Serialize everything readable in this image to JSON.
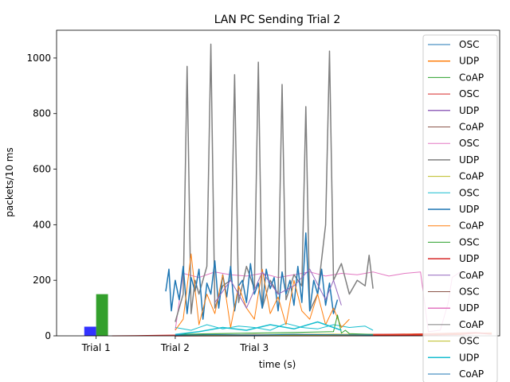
{
  "chart_data": {
    "type": "line",
    "title": "LAN PC Sending Trial 2",
    "xlabel": "time (s)",
    "ylabel": "packets/10 ms",
    "xlim": [
      -0.5,
      5.1
    ],
    "ylim": [
      0,
      1100
    ],
    "x_ticks": [
      {
        "value": 0,
        "label": "Trial 1"
      },
      {
        "value": 1,
        "label": "Trial 2"
      },
      {
        "value": 2,
        "label": "Trial 3"
      }
    ],
    "y_ticks": [
      0,
      200,
      400,
      600,
      800,
      1000
    ],
    "grid": false,
    "legend_position": "right",
    "bars": [
      {
        "x": -0.15,
        "width": 0.15,
        "value": 33,
        "color": "#3333ff"
      },
      {
        "x": 0.0,
        "width": 0.15,
        "value": 150,
        "color": "#33a02c"
      }
    ],
    "series": [
      {
        "name": "OSC",
        "color": "#1f77b4",
        "linewidth": 1.0,
        "x": [
          1.0,
          1.5,
          2.0,
          2.5,
          3.0,
          3.5
        ],
        "y": [
          2,
          3,
          2,
          4,
          3,
          2
        ]
      },
      {
        "name": "UDP",
        "color": "#ff7f0e",
        "linewidth": 1.5,
        "x": [
          1.0,
          1.5,
          2.0,
          2.5,
          3.0,
          3.5,
          4.0,
          4.5,
          5.0
        ],
        "y": [
          1,
          2,
          3,
          2,
          3,
          4,
          6,
          8,
          10
        ]
      },
      {
        "name": "CoAP",
        "color": "#2ca02c",
        "linewidth": 1.0,
        "x": [
          1.0,
          1.5,
          2.0,
          2.5,
          3.0,
          3.5
        ],
        "y": [
          3,
          5,
          4,
          6,
          5,
          4
        ]
      },
      {
        "name": "OSC",
        "color": "#d62728",
        "linewidth": 1.0,
        "x": [
          0.2,
          0.5,
          0.8,
          1.0,
          1.5,
          2.0,
          3.0,
          4.0,
          4.8,
          5.0
        ],
        "y": [
          0,
          1,
          2,
          3,
          3,
          4,
          5,
          6,
          12,
          8
        ]
      },
      {
        "name": "UDP",
        "color": "#9467bd",
        "linewidth": 1.5,
        "x": [
          1.0,
          1.5,
          2.0,
          2.5,
          3.0,
          3.5
        ],
        "y": [
          2,
          3,
          4,
          3,
          2,
          3
        ]
      },
      {
        "name": "CoAP",
        "color": "#8c564b",
        "linewidth": 1.0,
        "x": [
          1.0,
          1.5,
          2.0,
          2.5,
          3.0,
          3.5
        ],
        "y": [
          1,
          2,
          2,
          3,
          2,
          2
        ]
      },
      {
        "name": "OSC",
        "color": "#e377c2",
        "linewidth": 1.0,
        "x": [
          1.0,
          1.1,
          1.3,
          1.5,
          1.7,
          1.9,
          2.1,
          2.3,
          2.5,
          2.7,
          2.9,
          3.1,
          3.3,
          3.5,
          3.7,
          3.9,
          4.1,
          4.2,
          4.35,
          4.45,
          4.5,
          4.55,
          4.6
        ],
        "y": [
          20,
          225,
          210,
          230,
          220,
          215,
          225,
          210,
          220,
          230,
          215,
          225,
          220,
          230,
          215,
          225,
          230,
          15,
          20,
          120,
          210,
          220,
          230
        ]
      },
      {
        "name": "UDP",
        "color": "#7f7f7f",
        "linewidth": 1.5,
        "x": [
          1.0,
          1.1,
          1.15,
          1.2,
          1.25,
          1.3,
          1.4,
          1.45,
          1.5,
          1.6,
          1.7,
          1.75,
          1.8,
          1.9,
          2.0,
          2.05,
          2.1,
          2.2,
          2.3,
          2.35,
          2.4,
          2.5,
          2.6,
          2.65,
          2.7,
          2.8,
          2.9,
          2.95,
          3.0,
          3.1,
          3.2,
          3.3,
          3.4,
          3.45,
          3.5
        ],
        "y": [
          50,
          150,
          970,
          80,
          200,
          150,
          250,
          1050,
          100,
          180,
          200,
          940,
          120,
          250,
          170,
          985,
          100,
          200,
          150,
          905,
          130,
          220,
          180,
          825,
          90,
          150,
          400,
          1025,
          200,
          260,
          150,
          200,
          180,
          290,
          170
        ]
      },
      {
        "name": "CoAP",
        "color": "#bcbd22",
        "linewidth": 1.0,
        "x": [
          1.0,
          1.5,
          2.0,
          2.5,
          3.0,
          3.5
        ],
        "y": [
          4,
          3,
          5,
          4,
          6,
          5
        ]
      },
      {
        "name": "OSC",
        "color": "#17becf",
        "linewidth": 1.0,
        "x": [
          1.0,
          1.2,
          1.4,
          1.6,
          1.8,
          2.0,
          2.2,
          2.4,
          2.6,
          2.8,
          3.0,
          3.2,
          3.4,
          3.5
        ],
        "y": [
          30,
          20,
          40,
          25,
          35,
          30,
          20,
          45,
          30,
          25,
          40,
          30,
          35,
          20
        ]
      },
      {
        "name": "UDP",
        "color": "#1f77b4",
        "linewidth": 1.5,
        "x": [
          0.88,
          0.92,
          0.95,
          1.0,
          1.05,
          1.1,
          1.15,
          1.2,
          1.25,
          1.3,
          1.35,
          1.4,
          1.45,
          1.5,
          1.55,
          1.6,
          1.65,
          1.7,
          1.75,
          1.8,
          1.85,
          1.9,
          1.95,
          2.0,
          2.05,
          2.1,
          2.15,
          2.2,
          2.25,
          2.3,
          2.35,
          2.4,
          2.45,
          2.5,
          2.55,
          2.6,
          2.65,
          2.7,
          2.75,
          2.8,
          2.85,
          2.9,
          2.95,
          3.0,
          3.05
        ],
        "y": [
          160,
          240,
          90,
          200,
          130,
          250,
          80,
          210,
          160,
          240,
          60,
          190,
          150,
          270,
          100,
          220,
          140,
          250,
          90,
          180,
          200,
          120,
          260,
          150,
          190,
          100,
          240,
          170,
          210,
          90,
          230,
          150,
          200,
          110,
          250,
          120,
          370,
          90,
          200,
          150,
          240,
          110,
          190,
          80,
          130
        ]
      },
      {
        "name": "CoAP",
        "color": "#ff7f0e",
        "linewidth": 1.0,
        "x": [
          1.0,
          1.1,
          1.2,
          1.3,
          1.4,
          1.5,
          1.6,
          1.7,
          1.8,
          1.9,
          2.0,
          2.1,
          2.2,
          2.3,
          2.4,
          2.5,
          2.6,
          2.7,
          2.8,
          2.9,
          3.0,
          3.1,
          3.2
        ],
        "y": [
          20,
          60,
          295,
          40,
          150,
          80,
          220,
          30,
          180,
          100,
          60,
          240,
          80,
          140,
          40,
          200,
          90,
          60,
          150,
          40,
          100,
          30,
          60
        ]
      },
      {
        "name": "OSC",
        "color": "#2ca02c",
        "linewidth": 1.0,
        "x": [
          1.0,
          1.5,
          2.0,
          2.5,
          3.0,
          3.05,
          3.1,
          3.15,
          3.2,
          3.5
        ],
        "y": [
          5,
          8,
          10,
          12,
          15,
          75,
          10,
          20,
          8,
          5
        ]
      },
      {
        "name": "UDP",
        "color": "#d62728",
        "linewidth": 1.5,
        "x": [
          1.0,
          2.0,
          3.0,
          4.0,
          4.6,
          4.8,
          5.0
        ],
        "y": [
          0,
          1,
          1,
          2,
          5,
          10,
          6
        ]
      },
      {
        "name": "CoAP",
        "color": "#9467bd",
        "linewidth": 1.0,
        "x": [
          1.5,
          1.7,
          1.9,
          2.1,
          2.3,
          2.5,
          2.7,
          2.9,
          3.0,
          3.1
        ],
        "y": [
          120,
          200,
          100,
          230,
          150,
          180,
          240,
          130,
          200,
          110
        ]
      },
      {
        "name": "OSC",
        "color": "#8c564b",
        "linewidth": 1.0,
        "x": [
          1.0,
          2.0,
          3.0,
          3.5
        ],
        "y": [
          1,
          2,
          2,
          1
        ]
      },
      {
        "name": "UDP",
        "color": "#e377c2",
        "linewidth": 1.5,
        "x": [
          1.0,
          2.0,
          3.0,
          3.5
        ],
        "y": [
          2,
          3,
          3,
          2
        ]
      },
      {
        "name": "CoAP",
        "color": "#7f7f7f",
        "linewidth": 1.0,
        "x": [
          1.0,
          2.0,
          3.0,
          3.5
        ],
        "y": [
          1,
          1,
          2,
          1
        ]
      },
      {
        "name": "OSC",
        "color": "#bcbd22",
        "linewidth": 1.0,
        "x": [
          1.0,
          2.0,
          3.0,
          3.5
        ],
        "y": [
          2,
          2,
          3,
          2
        ]
      },
      {
        "name": "UDP",
        "color": "#17becf",
        "linewidth": 1.5,
        "x": [
          1.0,
          1.3,
          1.6,
          1.9,
          2.2,
          2.5,
          2.8,
          3.1
        ],
        "y": [
          5,
          15,
          30,
          20,
          40,
          25,
          50,
          20
        ]
      },
      {
        "name": "CoAP",
        "color": "#1f77b4",
        "linewidth": 1.0,
        "x": [
          1.0,
          1.5,
          2.0,
          2.5,
          3.0,
          3.5
        ],
        "y": [
          3,
          4,
          3,
          5,
          4,
          3
        ]
      }
    ]
  }
}
